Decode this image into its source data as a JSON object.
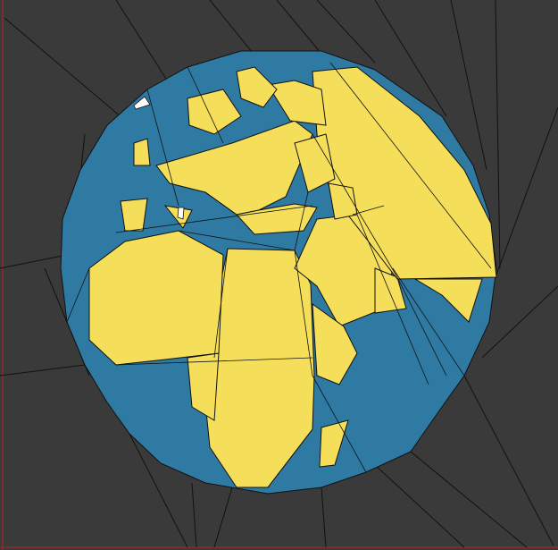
{
  "artwork": {
    "subject": "low-poly-globe-illustration",
    "colors": {
      "background": "#3a3a3a",
      "ocean": "#2f7aa2",
      "land": "#f5df5a",
      "ice": "#ffffff",
      "stroke": "#111111",
      "edge": "#8b2a2a"
    }
  }
}
